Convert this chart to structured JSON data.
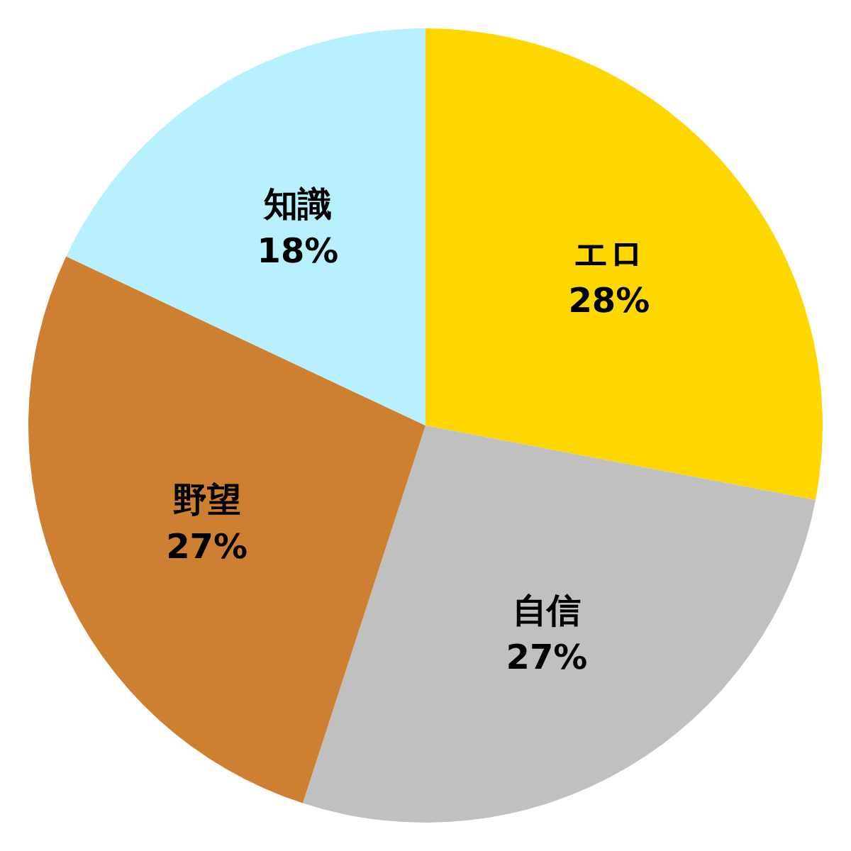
{
  "chart_data": {
    "type": "pie",
    "categories": [
      "エロ",
      "自信",
      "野望",
      "知識"
    ],
    "values": [
      28,
      27,
      27,
      18
    ],
    "value_labels": [
      "28%",
      "27%",
      "27%",
      "18%"
    ],
    "colors": [
      "#ffd700",
      "#c0c0c0",
      "#cd7f32",
      "#b9f0ff"
    ]
  }
}
